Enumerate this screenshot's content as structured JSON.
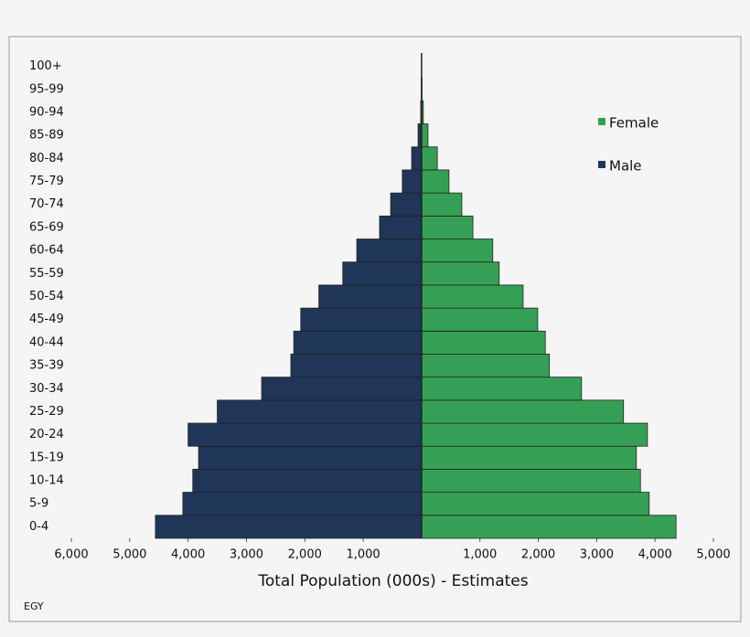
{
  "chart_data": {
    "type": "pyramid",
    "xlabel": "Total Population (000s) - Estimates",
    "note": "EGY",
    "categories": [
      "0-4",
      "5-9",
      "10-14",
      "15-19",
      "20-24",
      "25-29",
      "30-34",
      "35-39",
      "40-44",
      "45-49",
      "50-54",
      "55-59",
      "60-64",
      "65-69",
      "70-74",
      "75-79",
      "80-84",
      "85-89",
      "90-94",
      "95-99",
      "100+"
    ],
    "series": [
      {
        "name": "Female",
        "color": "#35a055",
        "side": "right",
        "values": [
          4360,
          3900,
          3750,
          3680,
          3870,
          3460,
          2740,
          2190,
          2120,
          1990,
          1740,
          1330,
          1220,
          880,
          690,
          470,
          270,
          110,
          30,
          8,
          2
        ]
      },
      {
        "name": "Male",
        "color": "#1f3658",
        "side": "left",
        "values": [
          4560,
          4090,
          3920,
          3820,
          4000,
          3500,
          2740,
          2240,
          2190,
          2070,
          1760,
          1350,
          1110,
          720,
          530,
          330,
          170,
          60,
          15,
          5,
          1
        ]
      }
    ],
    "xlim": [
      -6000,
      5000
    ],
    "xticks": [
      {
        "value": -6000,
        "label": "6,000"
      },
      {
        "value": -5000,
        "label": "5,000"
      },
      {
        "value": -4000,
        "label": "4,000"
      },
      {
        "value": -3000,
        "label": "3,000"
      },
      {
        "value": -2000,
        "label": "2,000"
      },
      {
        "value": -1000,
        "label": "1,000"
      },
      {
        "value": 1000,
        "label": "1,000"
      },
      {
        "value": 2000,
        "label": "2,000"
      },
      {
        "value": 3000,
        "label": "3,000"
      },
      {
        "value": 4000,
        "label": "4,000"
      },
      {
        "value": 5000,
        "label": "5,000"
      }
    ],
    "legend": "upper right"
  }
}
